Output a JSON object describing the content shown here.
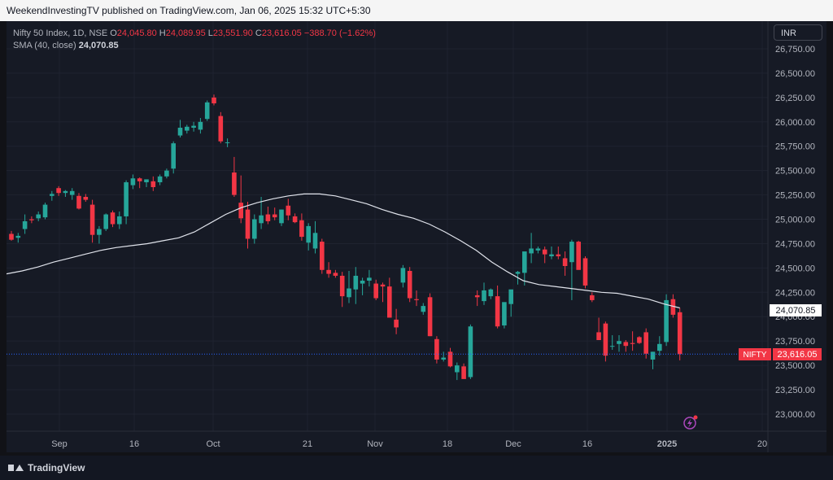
{
  "publisher_line": "WeekendInvestingTV published on TradingView.com, Jan 06, 2025 15:32 UTC+5:30",
  "legend": {
    "symbol": "Nifty 50 Index, 1D, NSE",
    "o_label": "O",
    "o_value": "24,045.80",
    "h_label": "H",
    "h_value": "24,089.95",
    "l_label": "L",
    "l_value": "23,551.90",
    "c_label": "C",
    "c_value": "23,616.05",
    "change": "−388.70 (−1.62%)",
    "sma_label": "SMA (40, close)",
    "sma_value": "24,070.85"
  },
  "currency_button": "INR",
  "price_axis": {
    "ticks": [
      "26,750.00",
      "26,500.00",
      "26,250.00",
      "26,000.00",
      "25,750.00",
      "25,500.00",
      "25,250.00",
      "25,000.00",
      "24,750.00",
      "24,500.00",
      "24,250.00",
      "24,000.00",
      "23,750.00",
      "23,500.00",
      "23,250.00",
      "23,000.00"
    ],
    "sma_badge": "24,070.85",
    "price_badge_symbol": "NIFTY",
    "price_badge_value": "23,616.05"
  },
  "time_axis": {
    "labels": [
      "Sep",
      "16",
      "Oct",
      "21",
      "Nov",
      "18",
      "Dec",
      "16",
      "2025",
      "20"
    ]
  },
  "footer_brand": "TradingView",
  "colors": {
    "up": "#26a69a",
    "down": "#f23645",
    "sma": "#e0e3eb",
    "background": "#161a25"
  },
  "chart_data": {
    "type": "candlestick",
    "symbol": "Nifty 50 Index",
    "ylim": [
      22800,
      26950
    ],
    "series": [
      {
        "name": "Nifty 50 Index",
        "values": [
          {
            "o": 24850,
            "h": 24880,
            "l": 24780,
            "c": 24790
          },
          {
            "o": 24810,
            "h": 24860,
            "l": 24760,
            "c": 24830
          },
          {
            "o": 24900,
            "h": 25050,
            "l": 24850,
            "c": 24980
          },
          {
            "o": 25000,
            "h": 25030,
            "l": 24960,
            "c": 24990
          },
          {
            "o": 25010,
            "h": 25080,
            "l": 24980,
            "c": 25050
          },
          {
            "o": 25020,
            "h": 25170,
            "l": 25000,
            "c": 25150
          },
          {
            "o": 25240,
            "h": 25290,
            "l": 25190,
            "c": 25260
          },
          {
            "o": 25320,
            "h": 25340,
            "l": 25240,
            "c": 25270
          },
          {
            "o": 25270,
            "h": 25300,
            "l": 25230,
            "c": 25290
          },
          {
            "o": 25250,
            "h": 25320,
            "l": 25200,
            "c": 25290
          },
          {
            "o": 25240,
            "h": 25270,
            "l": 25100,
            "c": 25110
          },
          {
            "o": 25230,
            "h": 25260,
            "l": 25180,
            "c": 25200
          },
          {
            "o": 25150,
            "h": 25200,
            "l": 24760,
            "c": 24840
          },
          {
            "o": 24840,
            "h": 24930,
            "l": 24750,
            "c": 24900
          },
          {
            "o": 24900,
            "h": 25060,
            "l": 24880,
            "c": 25050
          },
          {
            "o": 25070,
            "h": 25090,
            "l": 24920,
            "c": 24950
          },
          {
            "o": 24950,
            "h": 25080,
            "l": 24900,
            "c": 25030
          },
          {
            "o": 25030,
            "h": 25400,
            "l": 24950,
            "c": 25380
          },
          {
            "o": 25350,
            "h": 25460,
            "l": 25310,
            "c": 25420
          },
          {
            "o": 25420,
            "h": 25430,
            "l": 25320,
            "c": 25390
          },
          {
            "o": 25380,
            "h": 25410,
            "l": 25330,
            "c": 25410
          },
          {
            "o": 25390,
            "h": 25440,
            "l": 25290,
            "c": 25330
          },
          {
            "o": 25380,
            "h": 25460,
            "l": 25350,
            "c": 25440
          },
          {
            "o": 25440,
            "h": 25520,
            "l": 25420,
            "c": 25500
          },
          {
            "o": 25520,
            "h": 25800,
            "l": 25470,
            "c": 25780
          },
          {
            "o": 25860,
            "h": 26020,
            "l": 25840,
            "c": 25940
          },
          {
            "o": 25910,
            "h": 25970,
            "l": 25880,
            "c": 25950
          },
          {
            "o": 25940,
            "h": 26000,
            "l": 25900,
            "c": 25960
          },
          {
            "o": 25920,
            "h": 26040,
            "l": 25880,
            "c": 26000
          },
          {
            "o": 26030,
            "h": 26220,
            "l": 26010,
            "c": 26200
          },
          {
            "o": 26250,
            "h": 26280,
            "l": 26170,
            "c": 26190
          },
          {
            "o": 26060,
            "h": 26100,
            "l": 25780,
            "c": 25800
          },
          {
            "o": 25790,
            "h": 25830,
            "l": 25740,
            "c": 25790
          },
          {
            "o": 25480,
            "h": 25640,
            "l": 25230,
            "c": 25250
          },
          {
            "o": 25170,
            "h": 25450,
            "l": 24960,
            "c": 25010
          },
          {
            "o": 25100,
            "h": 25180,
            "l": 24700,
            "c": 24800
          },
          {
            "o": 24800,
            "h": 25050,
            "l": 24750,
            "c": 25000
          },
          {
            "o": 24960,
            "h": 25230,
            "l": 24900,
            "c": 25040
          },
          {
            "o": 25050,
            "h": 25130,
            "l": 24950,
            "c": 24980
          },
          {
            "o": 25050,
            "h": 25120,
            "l": 24990,
            "c": 25020
          },
          {
            "o": 24960,
            "h": 25100,
            "l": 24930,
            "c": 25100
          },
          {
            "o": 25140,
            "h": 25210,
            "l": 24990,
            "c": 25040
          },
          {
            "o": 25030,
            "h": 25060,
            "l": 24960,
            "c": 24970
          },
          {
            "o": 24990,
            "h": 25060,
            "l": 24780,
            "c": 24820
          },
          {
            "o": 24760,
            "h": 24960,
            "l": 24680,
            "c": 24930
          },
          {
            "o": 24700,
            "h": 24980,
            "l": 24650,
            "c": 24860
          },
          {
            "o": 24770,
            "h": 24800,
            "l": 24440,
            "c": 24480
          },
          {
            "o": 24480,
            "h": 24560,
            "l": 24400,
            "c": 24440
          },
          {
            "o": 24450,
            "h": 24480,
            "l": 24400,
            "c": 24420
          },
          {
            "o": 24420,
            "h": 24460,
            "l": 24100,
            "c": 24210
          },
          {
            "o": 24200,
            "h": 24470,
            "l": 24140,
            "c": 24290
          },
          {
            "o": 24280,
            "h": 24510,
            "l": 24130,
            "c": 24420
          },
          {
            "o": 24340,
            "h": 24400,
            "l": 24220,
            "c": 24370
          },
          {
            "o": 24370,
            "h": 24480,
            "l": 24310,
            "c": 24400
          },
          {
            "o": 24340,
            "h": 24380,
            "l": 24170,
            "c": 24190
          },
          {
            "o": 24330,
            "h": 24350,
            "l": 24150,
            "c": 24310
          },
          {
            "o": 24310,
            "h": 24400,
            "l": 24000,
            "c": 23990
          },
          {
            "o": 23970,
            "h": 24080,
            "l": 23820,
            "c": 23890
          },
          {
            "o": 24350,
            "h": 24530,
            "l": 24300,
            "c": 24500
          },
          {
            "o": 24470,
            "h": 24510,
            "l": 24150,
            "c": 24190
          },
          {
            "o": 24180,
            "h": 24270,
            "l": 24110,
            "c": 24170
          },
          {
            "o": 24050,
            "h": 24140,
            "l": 24020,
            "c": 24110
          },
          {
            "o": 24200,
            "h": 24240,
            "l": 23800,
            "c": 23800
          },
          {
            "o": 23770,
            "h": 23800,
            "l": 23520,
            "c": 23560
          },
          {
            "o": 23560,
            "h": 23640,
            "l": 23540,
            "c": 23580
          },
          {
            "o": 23640,
            "h": 23680,
            "l": 23480,
            "c": 23490
          },
          {
            "o": 23430,
            "h": 23530,
            "l": 23350,
            "c": 23500
          },
          {
            "o": 23490,
            "h": 23520,
            "l": 23380,
            "c": 23360
          },
          {
            "o": 23380,
            "h": 23920,
            "l": 23360,
            "c": 23900
          },
          {
            "o": 24220,
            "h": 24270,
            "l": 24110,
            "c": 24200
          },
          {
            "o": 24160,
            "h": 24350,
            "l": 24120,
            "c": 24270
          },
          {
            "o": 24210,
            "h": 24290,
            "l": 24180,
            "c": 24280
          },
          {
            "o": 24210,
            "h": 24320,
            "l": 23880,
            "c": 23900
          },
          {
            "o": 23910,
            "h": 24140,
            "l": 23880,
            "c": 24150
          },
          {
            "o": 24130,
            "h": 24260,
            "l": 24000,
            "c": 24280
          },
          {
            "o": 24440,
            "h": 24470,
            "l": 24330,
            "c": 24460
          },
          {
            "o": 24450,
            "h": 24560,
            "l": 24320,
            "c": 24670
          },
          {
            "o": 24650,
            "h": 24860,
            "l": 24550,
            "c": 24700
          },
          {
            "o": 24680,
            "h": 24720,
            "l": 24650,
            "c": 24700
          },
          {
            "o": 24690,
            "h": 24720,
            "l": 24550,
            "c": 24640
          },
          {
            "o": 24620,
            "h": 24720,
            "l": 24590,
            "c": 24640
          },
          {
            "o": 24640,
            "h": 24720,
            "l": 24590,
            "c": 24620
          },
          {
            "o": 24600,
            "h": 24670,
            "l": 24420,
            "c": 24520
          },
          {
            "o": 24560,
            "h": 24790,
            "l": 24170,
            "c": 24770
          },
          {
            "o": 24770,
            "h": 24780,
            "l": 24500,
            "c": 24480
          },
          {
            "o": 24600,
            "h": 24620,
            "l": 24290,
            "c": 24320
          },
          {
            "o": 24220,
            "h": 24250,
            "l": 24150,
            "c": 24170
          },
          {
            "o": 23840,
            "h": 23990,
            "l": 23790,
            "c": 23760
          },
          {
            "o": 23930,
            "h": 23950,
            "l": 23540,
            "c": 23600
          },
          {
            "o": 23700,
            "h": 23810,
            "l": 23660,
            "c": 23700
          },
          {
            "o": 23720,
            "h": 23810,
            "l": 23640,
            "c": 23750
          },
          {
            "o": 23740,
            "h": 23760,
            "l": 23640,
            "c": 23700
          },
          {
            "o": 23730,
            "h": 23850,
            "l": 23650,
            "c": 23720
          },
          {
            "o": 23790,
            "h": 23800,
            "l": 23720,
            "c": 23730
          },
          {
            "o": 23840,
            "h": 23880,
            "l": 23570,
            "c": 23620
          },
          {
            "o": 23560,
            "h": 23640,
            "l": 23460,
            "c": 23640
          },
          {
            "o": 23650,
            "h": 23800,
            "l": 23600,
            "c": 23720
          },
          {
            "o": 23740,
            "h": 24230,
            "l": 23700,
            "c": 24170
          },
          {
            "o": 24180,
            "h": 24230,
            "l": 23990,
            "c": 24020
          },
          {
            "o": 24045.8,
            "h": 24089.95,
            "l": 23551.9,
            "c": 23616.05
          }
        ]
      },
      {
        "name": "SMA (40, close)",
        "values": [
          24440,
          24470,
          24510,
          24560,
          24600,
          24640,
          24680,
          24710,
          24730,
          24750,
          24780,
          24810,
          24870,
          24960,
          25050,
          25120,
          25170,
          25210,
          25240,
          25260,
          25260,
          25240,
          25200,
          25160,
          25100,
          25050,
          25010,
          24950,
          24870,
          24780,
          24680,
          24560,
          24460,
          24370,
          24330,
          24310,
          24290,
          24270,
          24250,
          24240,
          24210,
          24180,
          24130,
          24090
        ]
      }
    ]
  }
}
